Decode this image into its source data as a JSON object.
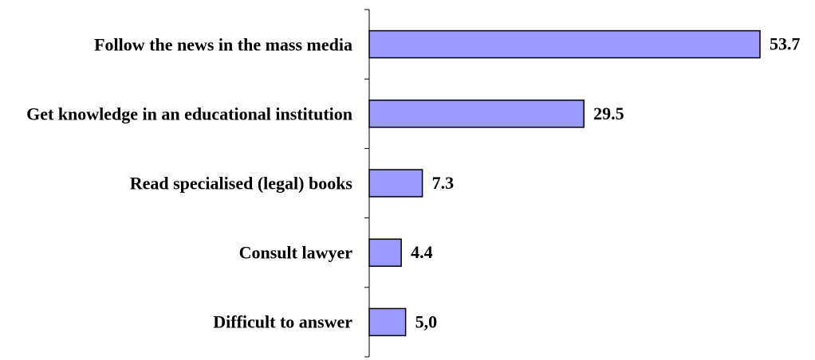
{
  "chart_data": {
    "type": "bar",
    "orientation": "horizontal",
    "categories": [
      "Follow the news in the mass media",
      "Get knowledge in an educational institution",
      "Read specialised (legal) books",
      "Consult lawyer",
      "Difficult to answer"
    ],
    "values": [
      53.7,
      29.5,
      7.3,
      4.4,
      5.0
    ],
    "value_labels": [
      "53.7",
      "29.5",
      "7.3",
      "4.4",
      "5,0"
    ],
    "color": "#9999ff"
  }
}
